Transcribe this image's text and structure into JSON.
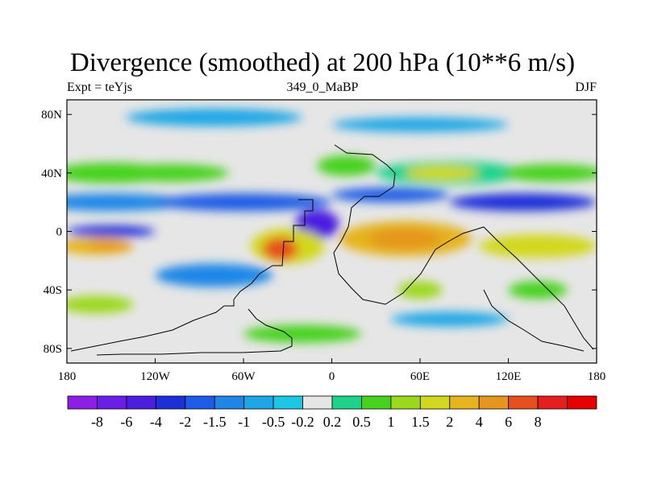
{
  "title": "Divergence (smoothed) at 200 hPa (10**6 m/s)",
  "subtitle_left": "Expt = teYjs",
  "subtitle_center": "349_0_MaBP",
  "subtitle_right": "DJF",
  "chart_data": {
    "type": "heatmap",
    "xlim": [
      -180,
      180
    ],
    "ylim": [
      -90,
      90
    ],
    "x_ticks": [
      {
        "value": -180,
        "label": "180"
      },
      {
        "value": -120,
        "label": "120W"
      },
      {
        "value": -60,
        "label": "60W"
      },
      {
        "value": 0,
        "label": "0"
      },
      {
        "value": 60,
        "label": "60E"
      },
      {
        "value": 120,
        "label": "120E"
      },
      {
        "value": 180,
        "label": "180"
      }
    ],
    "y_ticks": [
      {
        "value": 80,
        "label": "80N"
      },
      {
        "value": 40,
        "label": "40N"
      },
      {
        "value": 0,
        "label": "0"
      },
      {
        "value": -40,
        "label": "40S"
      },
      {
        "value": -80,
        "label": "80S"
      }
    ],
    "colorbar": {
      "colors": [
        "#8c1ee6",
        "#6a1ee8",
        "#4b1ee0",
        "#1e2fd8",
        "#1e5be6",
        "#1e86e6",
        "#1ea6e6",
        "#1ec6e6",
        "#e6e6e6",
        "#1ed28c",
        "#46d21e",
        "#9cd81e",
        "#d2d81e",
        "#e6b41e",
        "#e6961e",
        "#e6501e",
        "#e61e1e",
        "#e60000"
      ],
      "labels": [
        "-8",
        "-6",
        "-4",
        "-2",
        "-1.5",
        "-1",
        "-0.5",
        "-0.2",
        "0.2",
        "0.5",
        "1",
        "1.5",
        "2",
        "4",
        "6",
        "8"
      ]
    },
    "fields": [
      {
        "lon": -150,
        "lat": 40,
        "rlon": 40,
        "rlat": 7,
        "level": 10
      },
      {
        "lon": -110,
        "lat": 40,
        "rlon": 40,
        "rlat": 6,
        "level": 10
      },
      {
        "lon": 10,
        "lat": 45,
        "rlon": 20,
        "rlat": 7,
        "level": 10
      },
      {
        "lon": 80,
        "lat": 40,
        "rlon": 50,
        "rlat": 8,
        "level": 9
      },
      {
        "lon": 75,
        "lat": 40,
        "rlon": 25,
        "rlat": 5,
        "level": 12
      },
      {
        "lon": 150,
        "lat": 40,
        "rlon": 35,
        "rlat": 6,
        "level": 10
      },
      {
        "lon": -80,
        "lat": 78,
        "rlon": 60,
        "rlat": 6,
        "level": 6
      },
      {
        "lon": 60,
        "lat": 73,
        "rlon": 60,
        "rlat": 5,
        "level": 6
      },
      {
        "lon": -150,
        "lat": 20,
        "rlon": 50,
        "rlat": 6,
        "level": 5
      },
      {
        "lon": -60,
        "lat": 20,
        "rlon": 60,
        "rlat": 6,
        "level": 4
      },
      {
        "lon": 40,
        "lat": 25,
        "rlon": 40,
        "rlat": 5,
        "level": 4
      },
      {
        "lon": 130,
        "lat": 20,
        "rlon": 50,
        "rlat": 6,
        "level": 3
      },
      {
        "lon": -150,
        "lat": 0,
        "rlon": 30,
        "rlat": 4,
        "level": 3
      },
      {
        "lon": -10,
        "lat": 5,
        "rlon": 15,
        "rlat": 10,
        "level": 2
      },
      {
        "lon": -160,
        "lat": -10,
        "rlon": 25,
        "rlat": 6,
        "level": 13
      },
      {
        "lon": -150,
        "lat": -10,
        "rlon": 15,
        "rlat": 3,
        "level": 14
      },
      {
        "lon": -30,
        "lat": -10,
        "rlon": 25,
        "rlat": 12,
        "level": 12
      },
      {
        "lon": -35,
        "lat": -12,
        "rlon": 12,
        "rlat": 8,
        "level": 15
      },
      {
        "lon": 50,
        "lat": -5,
        "rlon": 45,
        "rlat": 12,
        "level": 13
      },
      {
        "lon": 50,
        "lat": -5,
        "rlon": 25,
        "rlat": 7,
        "level": 14
      },
      {
        "lon": 140,
        "lat": -10,
        "rlon": 40,
        "rlat": 8,
        "level": 12
      },
      {
        "lon": -80,
        "lat": -30,
        "rlon": 40,
        "rlat": 8,
        "level": 5
      },
      {
        "lon": 60,
        "lat": -40,
        "rlon": 15,
        "rlat": 6,
        "level": 11
      },
      {
        "lon": 140,
        "lat": -40,
        "rlon": 20,
        "rlat": 6,
        "level": 10
      },
      {
        "lon": -160,
        "lat": -50,
        "rlon": 25,
        "rlat": 6,
        "level": 11
      },
      {
        "lon": 80,
        "lat": -60,
        "rlon": 40,
        "rlat": 5,
        "level": 6
      },
      {
        "lon": -20,
        "lat": -70,
        "rlon": 40,
        "rlat": 6,
        "level": 10
      }
    ]
  }
}
